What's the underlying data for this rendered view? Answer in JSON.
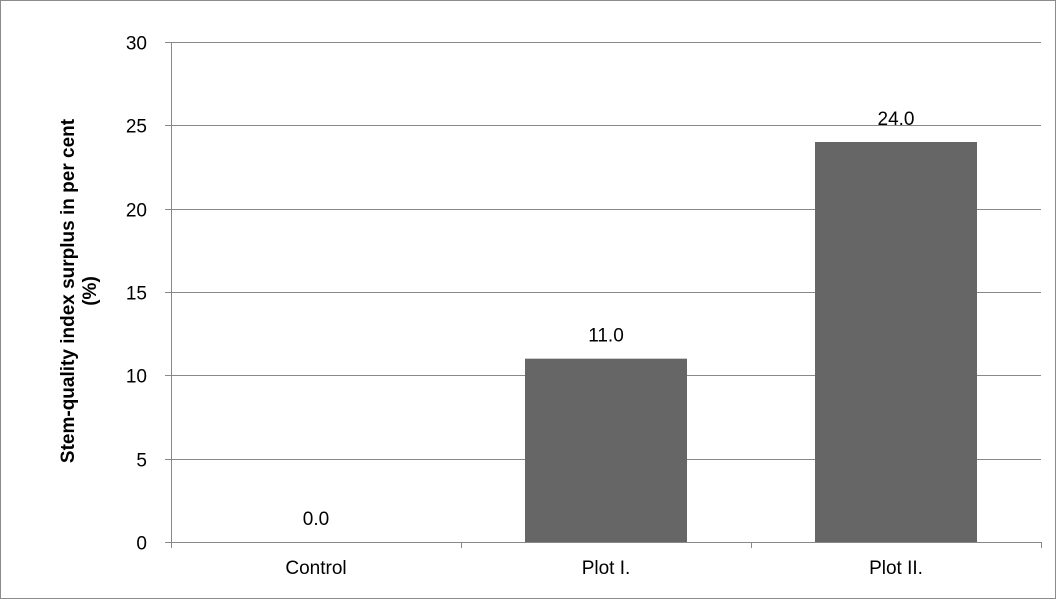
{
  "chart_data": {
    "type": "bar",
    "title": "",
    "xlabel": "",
    "ylabel": "Stem-quality index surplus in per cent",
    "ylabel_line2": "(%)",
    "categories": [
      "Control",
      "Plot I.",
      "Plot II."
    ],
    "values": [
      0.0,
      11.0,
      24.0
    ],
    "value_labels": [
      "0.0",
      "11.0",
      "24.0"
    ],
    "ylim": [
      0,
      30
    ],
    "yticks": [
      0,
      5,
      10,
      15,
      20,
      25,
      30
    ],
    "ytick_labels": [
      "0",
      "5",
      "10",
      "15",
      "20",
      "25",
      "30"
    ],
    "grid": true,
    "legend": "none",
    "colors": {
      "bar": "#666666",
      "grid": "#888888",
      "axis": "#888888"
    }
  }
}
